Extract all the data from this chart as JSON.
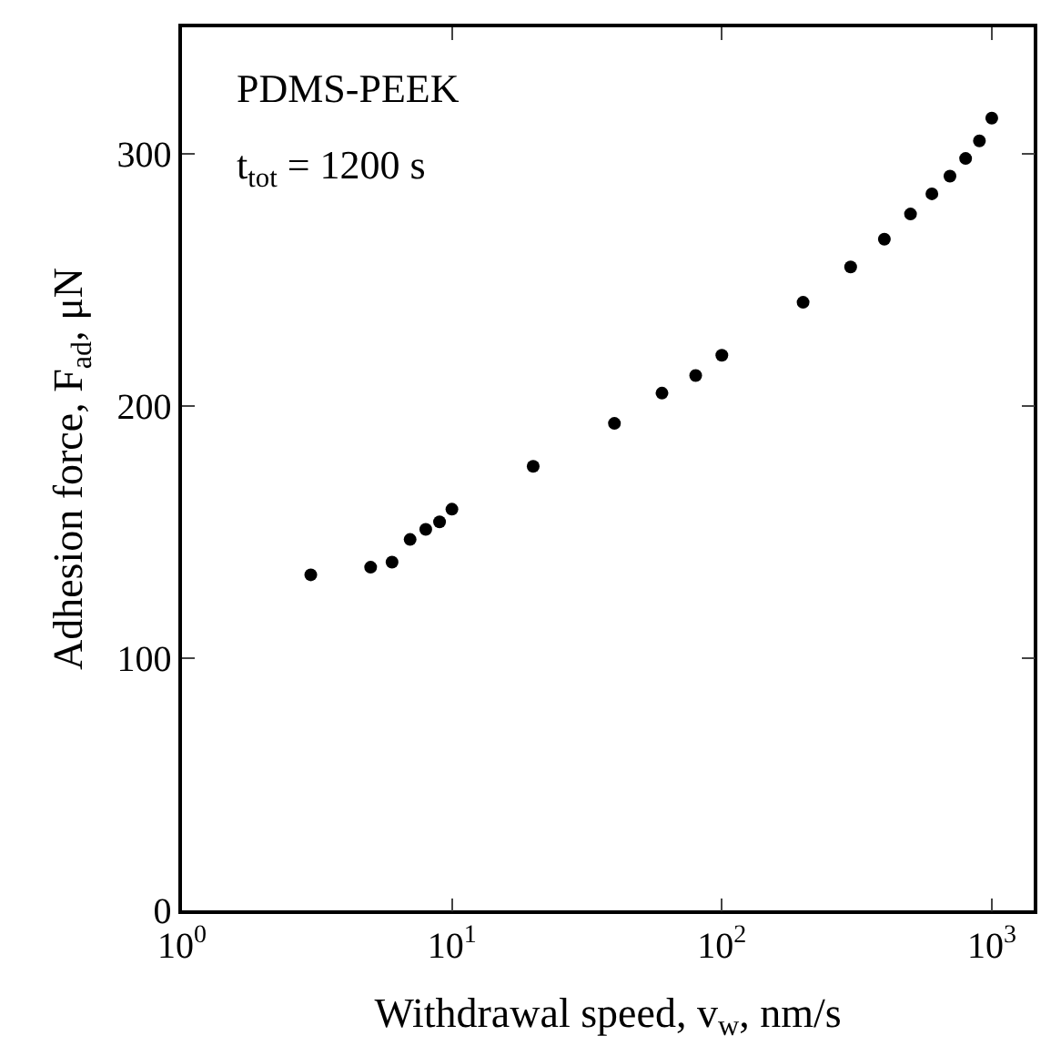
{
  "chart_data": {
    "type": "scatter",
    "xlabel": "Withdrawal speed, v$_{w}$, nm/s",
    "ylabel": "Adhesion force, F$_{ad}$, μN",
    "annotations": [
      "PDMS-PEEK",
      "t$_{tot}$ = 1200 s"
    ],
    "x": [
      3,
      5,
      6,
      7,
      8,
      9,
      10,
      20,
      40,
      60,
      80,
      100,
      200,
      300,
      400,
      500,
      600,
      700,
      800,
      900,
      1000
    ],
    "values": [
      133,
      136,
      138,
      147,
      151,
      154,
      159,
      176,
      193,
      205,
      212,
      220,
      241,
      255,
      266,
      276,
      284,
      291,
      298,
      305,
      314
    ],
    "color": "#000000",
    "marker": "circle",
    "log": "x",
    "grid": false,
    "xlim": [
      1,
      1430
    ],
    "xticks": [
      {
        "value": 1,
        "label": "10$^{0}$"
      },
      {
        "value": 10,
        "label": "10$^{1}$"
      },
      {
        "value": 100,
        "label": "10$^{2}$"
      },
      {
        "value": 1000,
        "label": "10$^{3}$"
      }
    ],
    "ylim": [
      0,
      350
    ],
    "yticks": [
      0,
      100,
      200,
      300
    ]
  }
}
